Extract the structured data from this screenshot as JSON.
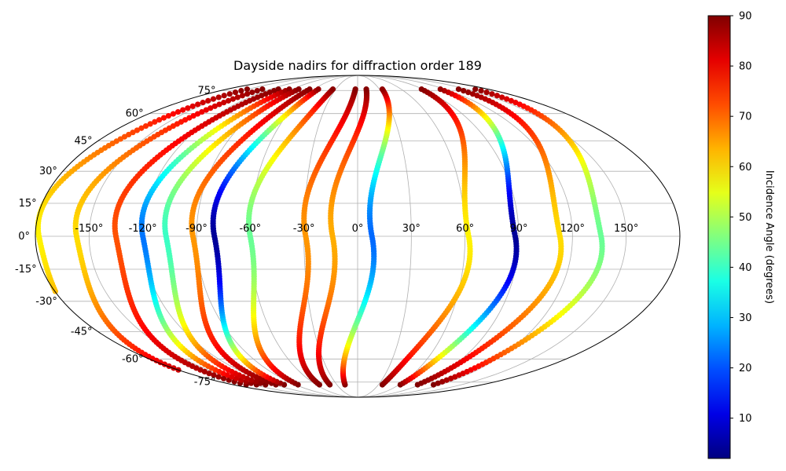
{
  "chart_data": {
    "type": "scatter",
    "projection": "mollweide",
    "title": "Dayside nadirs for diffraction order 189",
    "grid": true,
    "colormap": "jet",
    "x_ticks": [
      "-150°",
      "-120°",
      "-90°",
      "-60°",
      "-30°",
      "0°",
      "30°",
      "60°",
      "90°",
      "120°",
      "150°"
    ],
    "x_tick_values": [
      -150,
      -120,
      -90,
      -60,
      -30,
      0,
      30,
      60,
      90,
      120,
      150
    ],
    "y_ticks": [
      "75°",
      "60°",
      "45°",
      "30°",
      "15°",
      "0°",
      "-15°",
      "-30°",
      "-45°",
      "-60°",
      "-75°"
    ],
    "y_tick_values": [
      75,
      60,
      45,
      30,
      15,
      0,
      -15,
      -30,
      -45,
      -60,
      -75
    ],
    "colorbar": {
      "label": "Incidence Angle (degrees)",
      "ticks": [
        "90",
        "80",
        "70",
        "60",
        "50",
        "40",
        "30",
        "20",
        "10"
      ],
      "tick_values": [
        90,
        80,
        70,
        60,
        50,
        40,
        30,
        20,
        10
      ],
      "range": [
        2,
        90
      ]
    },
    "series": [
      {
        "lon_eq": -178,
        "i_min": 58
      },
      {
        "lon_eq": -157,
        "i_min": 60
      },
      {
        "lon_eq": -135,
        "i_min": 72
      },
      {
        "lon_eq": -120,
        "i_min": 23
      },
      {
        "lon_eq": -107,
        "i_min": 40
      },
      {
        "lon_eq": -92,
        "i_min": 66
      },
      {
        "lon_eq": -80,
        "i_min": 4
      },
      {
        "lon_eq": -60,
        "i_min": 44
      },
      {
        "lon_eq": -29,
        "i_min": 66
      },
      {
        "lon_eq": -14,
        "i_min": 64
      },
      {
        "lon_eq": 8,
        "i_min": 22
      },
      {
        "lon_eq": 62,
        "i_min": 58
      },
      {
        "lon_eq": 88,
        "i_min": 4
      },
      {
        "lon_eq": 113,
        "i_min": 60
      },
      {
        "lon_eq": 136,
        "i_min": 44
      }
    ]
  }
}
